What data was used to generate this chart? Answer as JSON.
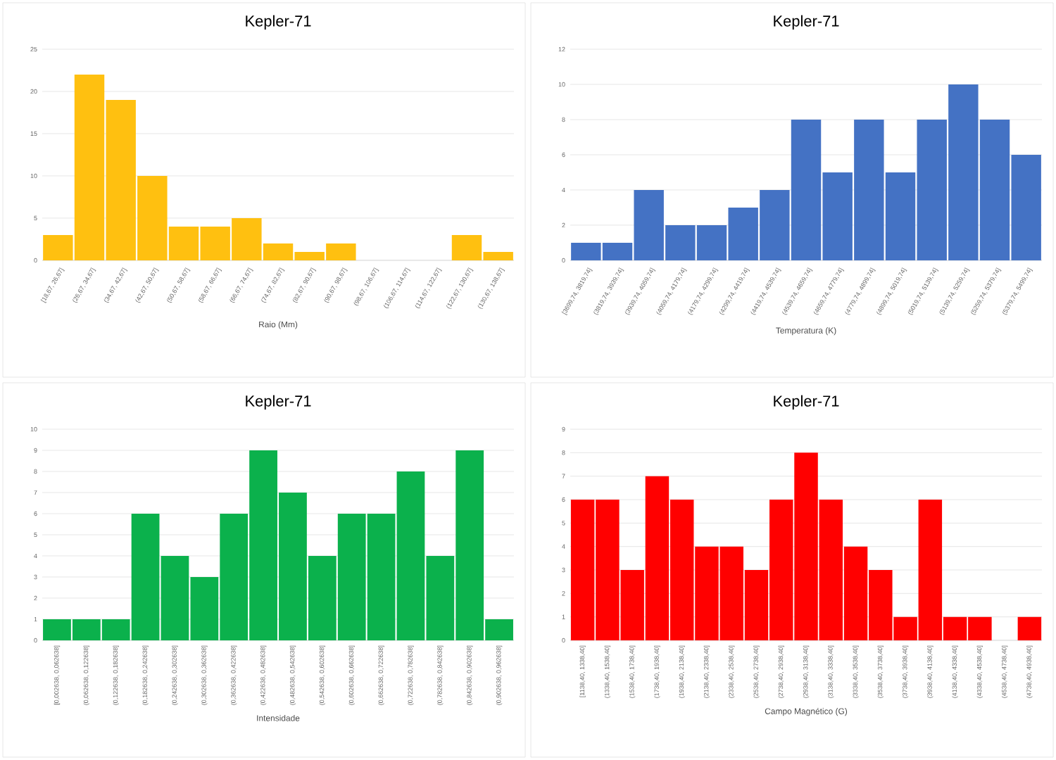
{
  "chart_data": [
    {
      "type": "bar",
      "title": "Kepler-71",
      "xlabel": "Raio (Mm)",
      "color": "#ffc010",
      "grid": "y",
      "ylim": [
        0,
        25
      ],
      "yticks": [
        0,
        5,
        10,
        15,
        20,
        25
      ],
      "categories": [
        "[18,67, 26,67]",
        "(26,67, 34,67]",
        "(34,67, 42,67]",
        "(42,67, 50,67]",
        "(50,67, 58,67]",
        "(58,67, 66,67]",
        "(66,67, 74,67]",
        "(74,67, 82,67]",
        "(82,67, 90,67]",
        "(90,67, 98,67]",
        "(98,67, 106,67]",
        "(106,67, 114,67]",
        "(114,67, 122,67]",
        "(122,67, 130,67]",
        "(130,67, 138,67]"
      ],
      "values": [
        3,
        22,
        19,
        10,
        4,
        4,
        5,
        2,
        1,
        2,
        0,
        0,
        0,
        3,
        1
      ]
    },
    {
      "type": "bar",
      "title": "Kepler-71",
      "xlabel": "Temperatura (K)",
      "color": "#4472c4",
      "grid": "y",
      "ylim": [
        0,
        12
      ],
      "yticks": [
        0,
        2,
        4,
        6,
        8,
        10,
        12
      ],
      "categories": [
        "[3699,74, 3819,74]",
        "(3819,74, 3939,74]",
        "(3939,74, 4059,74]",
        "(4059,74, 4179,74]",
        "(4179,74, 4299,74]",
        "(4299,74, 4419,74]",
        "(4419,74, 4539,74]",
        "(4539,74, 4659,74]",
        "(4659,74, 4779,74]",
        "(4779,74, 4899,74]",
        "(4899,74, 5019,74]",
        "(5019,74, 5139,74]",
        "(5139,74, 5259,74]",
        "(5259,74, 5379,74]",
        "(5379,74, 5499,74]"
      ],
      "values": [
        1,
        1,
        4,
        2,
        2,
        3,
        4,
        8,
        5,
        8,
        5,
        8,
        10,
        8,
        6
      ]
    },
    {
      "type": "bar",
      "title": "Kepler-71",
      "xlabel": "Intensidade",
      "color": "#0bb14c",
      "grid": "y",
      "ylim": [
        0,
        10
      ],
      "yticks": [
        0,
        1,
        2,
        3,
        4,
        5,
        6,
        7,
        8,
        9,
        10
      ],
      "categories": [
        "[0,002638, 0,062638]",
        "(0,062638, 0,122638]",
        "(0,122638, 0,182638]",
        "(0,182638, 0,242638]",
        "(0,242638, 0,302638]",
        "(0,302638, 0,362638]",
        "(0,362638, 0,422638]",
        "(0,422638, 0,482638]",
        "(0,482638, 0,542638]",
        "(0,542638, 0,602638]",
        "(0,602638, 0,662638]",
        "(0,662638, 0,722638]",
        "(0,722638, 0,782638]",
        "(0,782638, 0,842638]",
        "(0,842638, 0,902638]",
        "(0,902638, 0,962638]"
      ],
      "values": [
        1,
        1,
        1,
        6,
        4,
        3,
        6,
        9,
        7,
        4,
        6,
        6,
        8,
        4,
        9,
        1
      ]
    },
    {
      "type": "bar",
      "title": "Kepler-71",
      "xlabel": "Campo Magnético (G)",
      "color": "#ff0000",
      "grid": "y",
      "ylim": [
        0,
        9
      ],
      "yticks": [
        0,
        1,
        2,
        3,
        4,
        5,
        6,
        7,
        8,
        9
      ],
      "categories": [
        "[1138,40, 1338,40]",
        "(1338,40, 1538,40]",
        "(1538,40, 1738,40]",
        "(1738,40, 1938,40]",
        "(1938,40, 2138,40]",
        "(2138,40, 2338,40]",
        "(2338,40, 2538,40]",
        "(2538,40, 2738,40]",
        "(2738,40, 2938,40]",
        "(2938,40, 3138,40]",
        "(3138,40, 3338,40]",
        "(3338,40, 3538,40]",
        "(3538,40, 3738,40]",
        "(3738,40, 3938,40]",
        "(3938,40, 4138,40]",
        "(4138,40, 4338,40]",
        "(4338,40, 4538,40]",
        "(4538,40, 4738,40]",
        "(4738,40, 4938,40]"
      ],
      "values": [
        6,
        6,
        3,
        7,
        6,
        4,
        4,
        3,
        6,
        8,
        6,
        4,
        3,
        1,
        6,
        1,
        1,
        0,
        1
      ]
    }
  ]
}
